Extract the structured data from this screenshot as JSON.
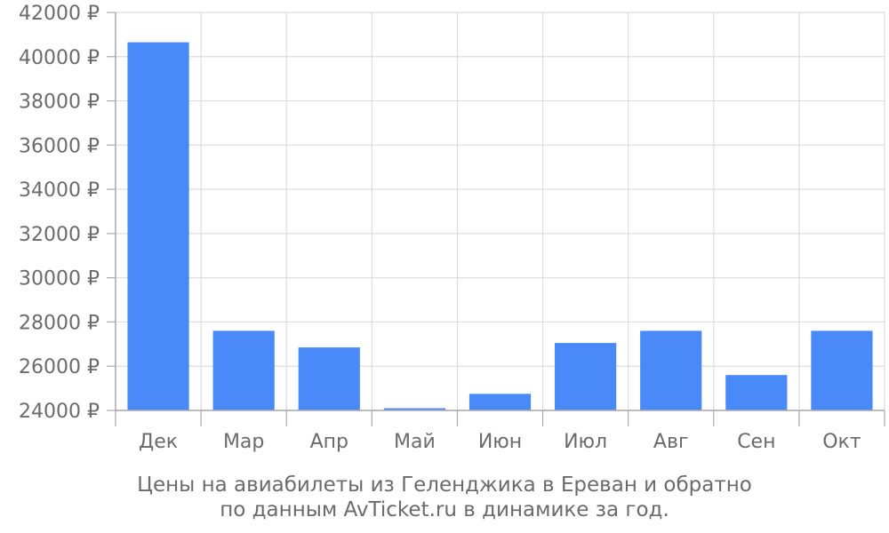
{
  "chart_data": {
    "type": "bar",
    "categories": [
      "Дек",
      "Мар",
      "Апр",
      "Май",
      "Июн",
      "Июл",
      "Авг",
      "Сен",
      "Окт"
    ],
    "values": [
      40650,
      27600,
      26850,
      24100,
      24750,
      27050,
      27600,
      25600,
      27600
    ],
    "yticks": [
      "24000 ₽",
      "26000 ₽",
      "28000 ₽",
      "30000 ₽",
      "32000 ₽",
      "34000 ₽",
      "36000 ₽",
      "38000 ₽",
      "40000 ₽",
      "42000 ₽"
    ],
    "ylim": [
      24000,
      42000
    ],
    "title": "",
    "xlabel": "",
    "ylabel": "",
    "grid": true,
    "legend": "none",
    "bar_color": "#4a8af8",
    "grid_color": "#dddddd",
    "axis_color": "#aaaaaa",
    "text_color": "#6b6b6b"
  },
  "caption": {
    "line1": "Цены на авиабилеты из Геленджика в Ереван и обратно",
    "line2": "по данным AvTicket.ru в динамике за год."
  }
}
